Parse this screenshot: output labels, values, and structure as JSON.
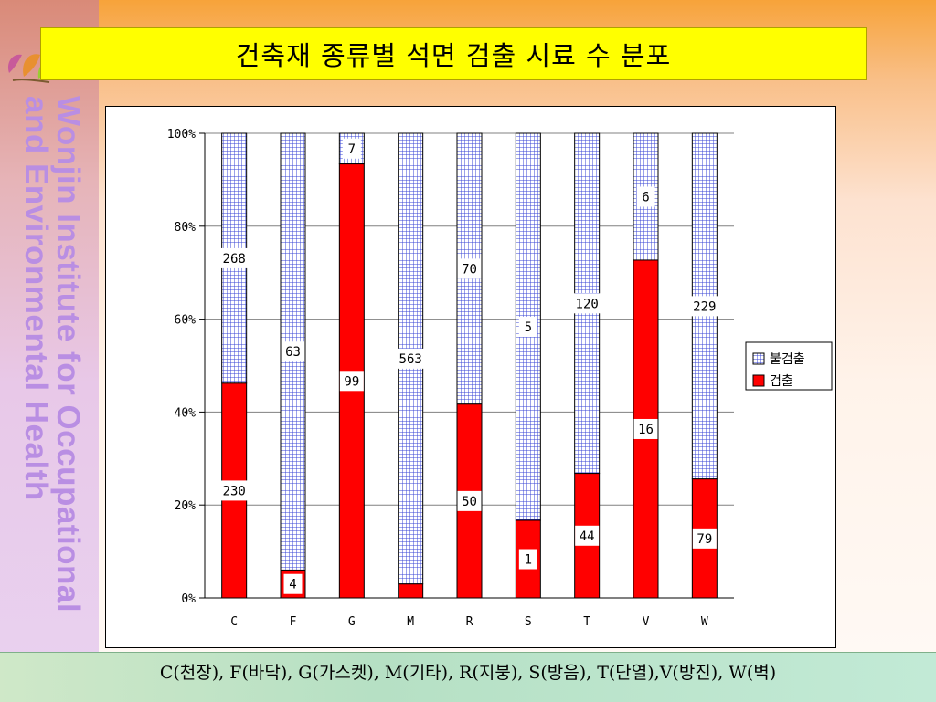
{
  "title": "건축재 종류별 석면 검출 시료 수 분포",
  "institute": "Wonjin Institute for Occupational and Environmental Health",
  "footer": "C(천장), F(바닥), G(가스켓), M(기타), R(지붕), S(방음), T(단열),V(방진), W(벽)",
  "colors": {
    "detected": "#ff0000",
    "not_detected_fill": "#ffffff",
    "not_detected_grid": "#3a46d6",
    "title_bg": "#ffff00",
    "institute_text": "#b98ee3"
  },
  "chart_data": {
    "type": "bar",
    "stacked": "percent",
    "categories": [
      "C",
      "F",
      "G",
      "M",
      "R",
      "S",
      "T",
      "V",
      "W"
    ],
    "series": [
      {
        "name": "검출",
        "values": [
          230,
          4,
          99,
          null,
          50,
          1,
          44,
          16,
          79
        ]
      },
      {
        "name": "불검출",
        "values": [
          268,
          63,
          7,
          563,
          70,
          5,
          120,
          6,
          229
        ]
      }
    ],
    "percent_detected": [
      46.2,
      6.0,
      93.4,
      3.0,
      41.7,
      16.7,
      26.8,
      72.7,
      25.6
    ],
    "ylim": [
      0,
      100
    ],
    "ytick_labels": [
      "0%",
      "20%",
      "40%",
      "60%",
      "80%",
      "100%"
    ],
    "legend": {
      "position": "right",
      "entries": [
        "불검출",
        "검출"
      ]
    }
  }
}
